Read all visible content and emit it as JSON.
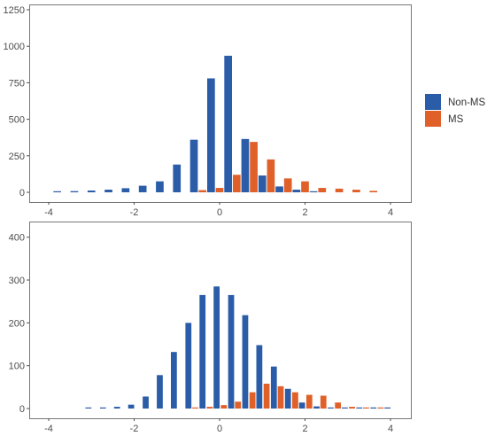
{
  "colors": {
    "non_ms": "#2a5ca8",
    "ms": "#e0602a",
    "panel_border": "#777777",
    "tick": "#4d4d4d"
  },
  "legend": {
    "placement": "right",
    "items": [
      {
        "key": "non_ms",
        "label": "Non-MS",
        "color": "#2a5ca8"
      },
      {
        "key": "ms",
        "label": "MS",
        "color": "#e0602a"
      }
    ]
  },
  "chart_data": [
    {
      "type": "bar",
      "grid": false,
      "xlim": [
        -4.3,
        4.3
      ],
      "ylim": [
        0,
        1250
      ],
      "x_ticks": [
        -4,
        -2,
        0,
        2,
        4
      ],
      "y_ticks": [
        0,
        250,
        500,
        750,
        1000,
        1250
      ],
      "x_tick_labels": [
        "-4",
        "-2",
        "0",
        "2",
        "4"
      ],
      "y_tick_labels": [
        "0",
        "250",
        "500",
        "750",
        "1000",
        "1250"
      ],
      "bin_width": 0.4,
      "bar_width": 0.18,
      "series": [
        {
          "name": "Non-MS",
          "color": "#2a5ca8",
          "x": [
            -3.8,
            -3.4,
            -3.0,
            -2.6,
            -2.2,
            -1.8,
            -1.4,
            -1.0,
            -0.6,
            -0.2,
            0.2,
            0.6,
            1.0,
            1.4,
            1.8,
            2.2
          ],
          "values": [
            3,
            8,
            12,
            18,
            28,
            45,
            75,
            190,
            360,
            780,
            935,
            365,
            115,
            40,
            18,
            4
          ]
        },
        {
          "name": "MS",
          "color": "#e0602a",
          "x": [
            -0.4,
            0.0,
            0.4,
            0.8,
            1.2,
            1.6,
            2.0,
            2.4,
            2.8,
            3.2,
            3.6
          ],
          "values": [
            15,
            30,
            120,
            345,
            225,
            95,
            75,
            30,
            25,
            18,
            10
          ]
        }
      ]
    },
    {
      "type": "bar",
      "grid": false,
      "xlim": [
        -4.3,
        4.3
      ],
      "ylim": [
        0,
        420
      ],
      "x_ticks": [
        -4,
        -2,
        0,
        2,
        4
      ],
      "y_ticks": [
        0,
        100,
        200,
        300,
        400
      ],
      "x_tick_labels": [
        "-4",
        "-2",
        "0",
        "2",
        "4"
      ],
      "y_tick_labels": [
        "0",
        "100",
        "200",
        "300",
        "400"
      ],
      "bin_width": 0.333,
      "bar_width": 0.14,
      "series": [
        {
          "name": "Non-MS",
          "color": "#2a5ca8",
          "x": [
            -3.07,
            -2.73,
            -2.4,
            -2.07,
            -1.73,
            -1.4,
            -1.07,
            -0.73,
            -0.4,
            -0.07,
            0.27,
            0.6,
            0.93,
            1.27,
            1.6,
            1.93,
            2.27,
            2.6,
            2.93,
            3.27,
            3.6,
            3.93
          ],
          "values": [
            1,
            2,
            4,
            9,
            28,
            78,
            132,
            200,
            265,
            285,
            265,
            218,
            148,
            98,
            46,
            14,
            5,
            2,
            1,
            0.5,
            0.5,
            0.5
          ]
        },
        {
          "name": "MS",
          "color": "#e0602a",
          "x": [
            -0.57,
            -0.23,
            0.1,
            0.43,
            0.77,
            1.1,
            1.43,
            1.77,
            2.1,
            2.43,
            2.77,
            3.1,
            3.43,
            3.77
          ],
          "values": [
            1,
            4,
            8,
            16,
            38,
            58,
            52,
            38,
            32,
            30,
            14,
            4,
            2,
            1
          ]
        }
      ]
    }
  ]
}
